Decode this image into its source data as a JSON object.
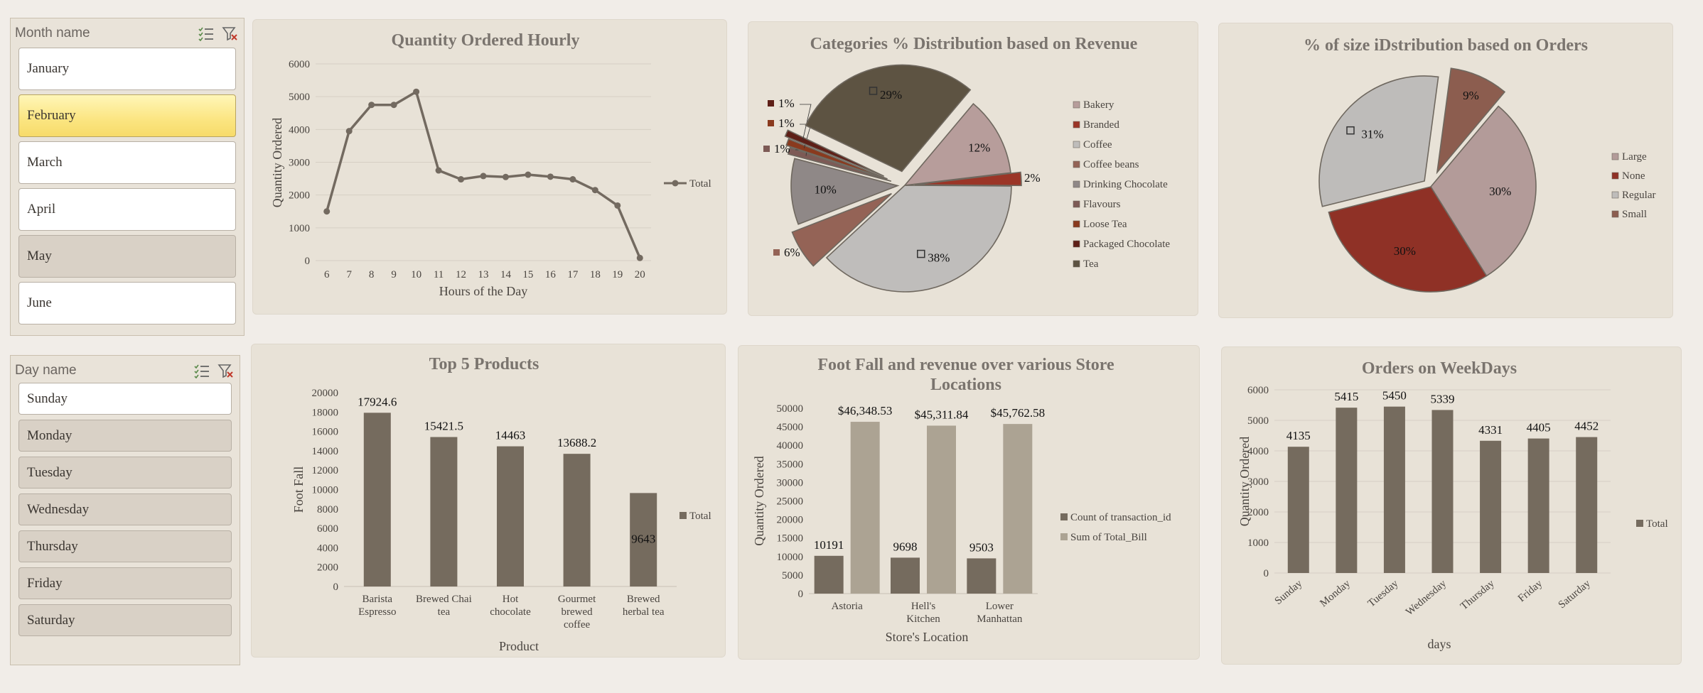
{
  "slicers": [
    {
      "title": "Month name",
      "items": [
        {
          "label": "January",
          "state": "on"
        },
        {
          "label": "February",
          "state": "hl"
        },
        {
          "label": "March",
          "state": "on"
        },
        {
          "label": "April",
          "state": "on"
        },
        {
          "label": "May",
          "state": "off"
        },
        {
          "label": "June",
          "state": "on"
        }
      ]
    },
    {
      "title": "Day name",
      "items": [
        {
          "label": "Sunday",
          "state": "on"
        },
        {
          "label": "Monday",
          "state": "off"
        },
        {
          "label": "Tuesday",
          "state": "off"
        },
        {
          "label": "Wednesday",
          "state": "off"
        },
        {
          "label": "Thursday",
          "state": "off"
        },
        {
          "label": "Friday",
          "state": "off"
        },
        {
          "label": "Saturday",
          "state": "off"
        }
      ]
    }
  ],
  "chart_data": [
    {
      "id": "hourly",
      "type": "line",
      "title": "Quantity Ordered Hourly",
      "xlabel": "Hours of the Day",
      "ylabel": "Quantity Ordered",
      "categories": [
        "6",
        "7",
        "8",
        "9",
        "10",
        "11",
        "12",
        "13",
        "14",
        "15",
        "16",
        "17",
        "18",
        "19",
        "20"
      ],
      "series": [
        {
          "name": "Total",
          "values": [
            1500,
            3950,
            4750,
            4750,
            5150,
            2750,
            2480,
            2580,
            2550,
            2620,
            2560,
            2480,
            2150,
            1680,
            80
          ]
        }
      ],
      "ylim": [
        0,
        6000
      ],
      "yticks": [
        0,
        1000,
        2000,
        3000,
        4000,
        5000,
        6000
      ],
      "legend": "right",
      "grid": true,
      "color": "#736a60"
    },
    {
      "id": "categories",
      "type": "pie",
      "title": "Categories % Distribution based on Revenue",
      "slices": [
        {
          "label": "Bakery",
          "value": 12,
          "text": "12%",
          "color": "#b79d9b"
        },
        {
          "label": "Branded",
          "value": 2,
          "text": "2%",
          "color": "#9b3527"
        },
        {
          "label": "Coffee",
          "value": 38,
          "text": "38%",
          "color": "#bfbdbb"
        },
        {
          "label": "Coffee beans",
          "value": 6,
          "text": "6%",
          "color": "#946356"
        },
        {
          "label": "Drinking Chocolate",
          "value": 10,
          "text": "10%",
          "color": "#8f8887"
        },
        {
          "label": "Flavours",
          "value": 1,
          "text": "1%",
          "color": "#7d5a55"
        },
        {
          "label": "Loose Tea",
          "value": 1,
          "text": "1%",
          "color": "#8a3a1e"
        },
        {
          "label": "Packaged Chocolate",
          "value": 1,
          "text": "1%",
          "color": "#5e1f17"
        },
        {
          "label": "Tea",
          "value": 29,
          "text": "29%",
          "color": "#5d5342"
        }
      ],
      "legend": "right"
    },
    {
      "id": "sizes",
      "type": "pie",
      "title": "% of size iDstribution based on Orders",
      "slices": [
        {
          "label": "Large",
          "value": 30,
          "text": "30%",
          "color": "#b39b99"
        },
        {
          "label": "None",
          "value": 30,
          "text": "30%",
          "color": "#8f3126"
        },
        {
          "label": "Regular",
          "value": 31,
          "text": "31%",
          "color": "#bebcba"
        },
        {
          "label": "Small",
          "value": 9,
          "text": "9%",
          "color": "#8c5d4f"
        }
      ],
      "legend": "right"
    },
    {
      "id": "products",
      "type": "bar",
      "title": "Top 5 Products",
      "xlabel": "Product",
      "ylabel": "Foot Fall",
      "categories": [
        "Barista Espresso",
        "Brewed Chai tea",
        "Hot chocolate",
        "Gourmet brewed coffee",
        "Brewed herbal tea"
      ],
      "series": [
        {
          "name": "Total",
          "values": [
            17924.6,
            15421.5,
            14463,
            13688.2,
            9643
          ]
        }
      ],
      "ylim": [
        0,
        20000
      ],
      "yticks": [
        0,
        2000,
        4000,
        6000,
        8000,
        10000,
        12000,
        14000,
        16000,
        18000,
        20000
      ],
      "legend": "right",
      "color": "#756b5e"
    },
    {
      "id": "stores",
      "type": "bar",
      "title": "Foot Fall and revenue over various Store Locations",
      "xlabel": "Store's Location",
      "ylabel": "Quantity Ordered",
      "categories": [
        "Astoria",
        "Hell's Kitchen",
        "Lower Manhattan"
      ],
      "series": [
        {
          "name": "Count of transaction_id",
          "values": [
            10191,
            9698,
            9503
          ],
          "labels": [
            "10191",
            "9698",
            "9503"
          ],
          "color": "#756b5e"
        },
        {
          "name": "Sum of Total_Bill",
          "values": [
            46348.53,
            45311.84,
            45762.58
          ],
          "labels": [
            "$46,348.53",
            "$45,311.84",
            "$45,762.58"
          ],
          "color": "#aca393"
        }
      ],
      "ylim": [
        0,
        50000
      ],
      "yticks": [
        0,
        5000,
        10000,
        15000,
        20000,
        25000,
        30000,
        35000,
        40000,
        45000,
        50000
      ],
      "legend": "right"
    },
    {
      "id": "weekdays",
      "type": "bar",
      "title": "Orders on WeekDays",
      "xlabel": "days",
      "ylabel": "Quantity Ordered",
      "categories": [
        "Sunday",
        "Monday",
        "Tuesday",
        "Wednesday",
        "Thursday",
        "Friday",
        "Saturday"
      ],
      "series": [
        {
          "name": "Total",
          "values": [
            4135,
            5415,
            5450,
            5339,
            4331,
            4405,
            4452
          ]
        }
      ],
      "ylim": [
        0,
        6000
      ],
      "yticks": [
        0,
        1000,
        2000,
        3000,
        4000,
        5000,
        6000
      ],
      "legend": "right",
      "grid": true,
      "color": "#756b5e"
    }
  ]
}
